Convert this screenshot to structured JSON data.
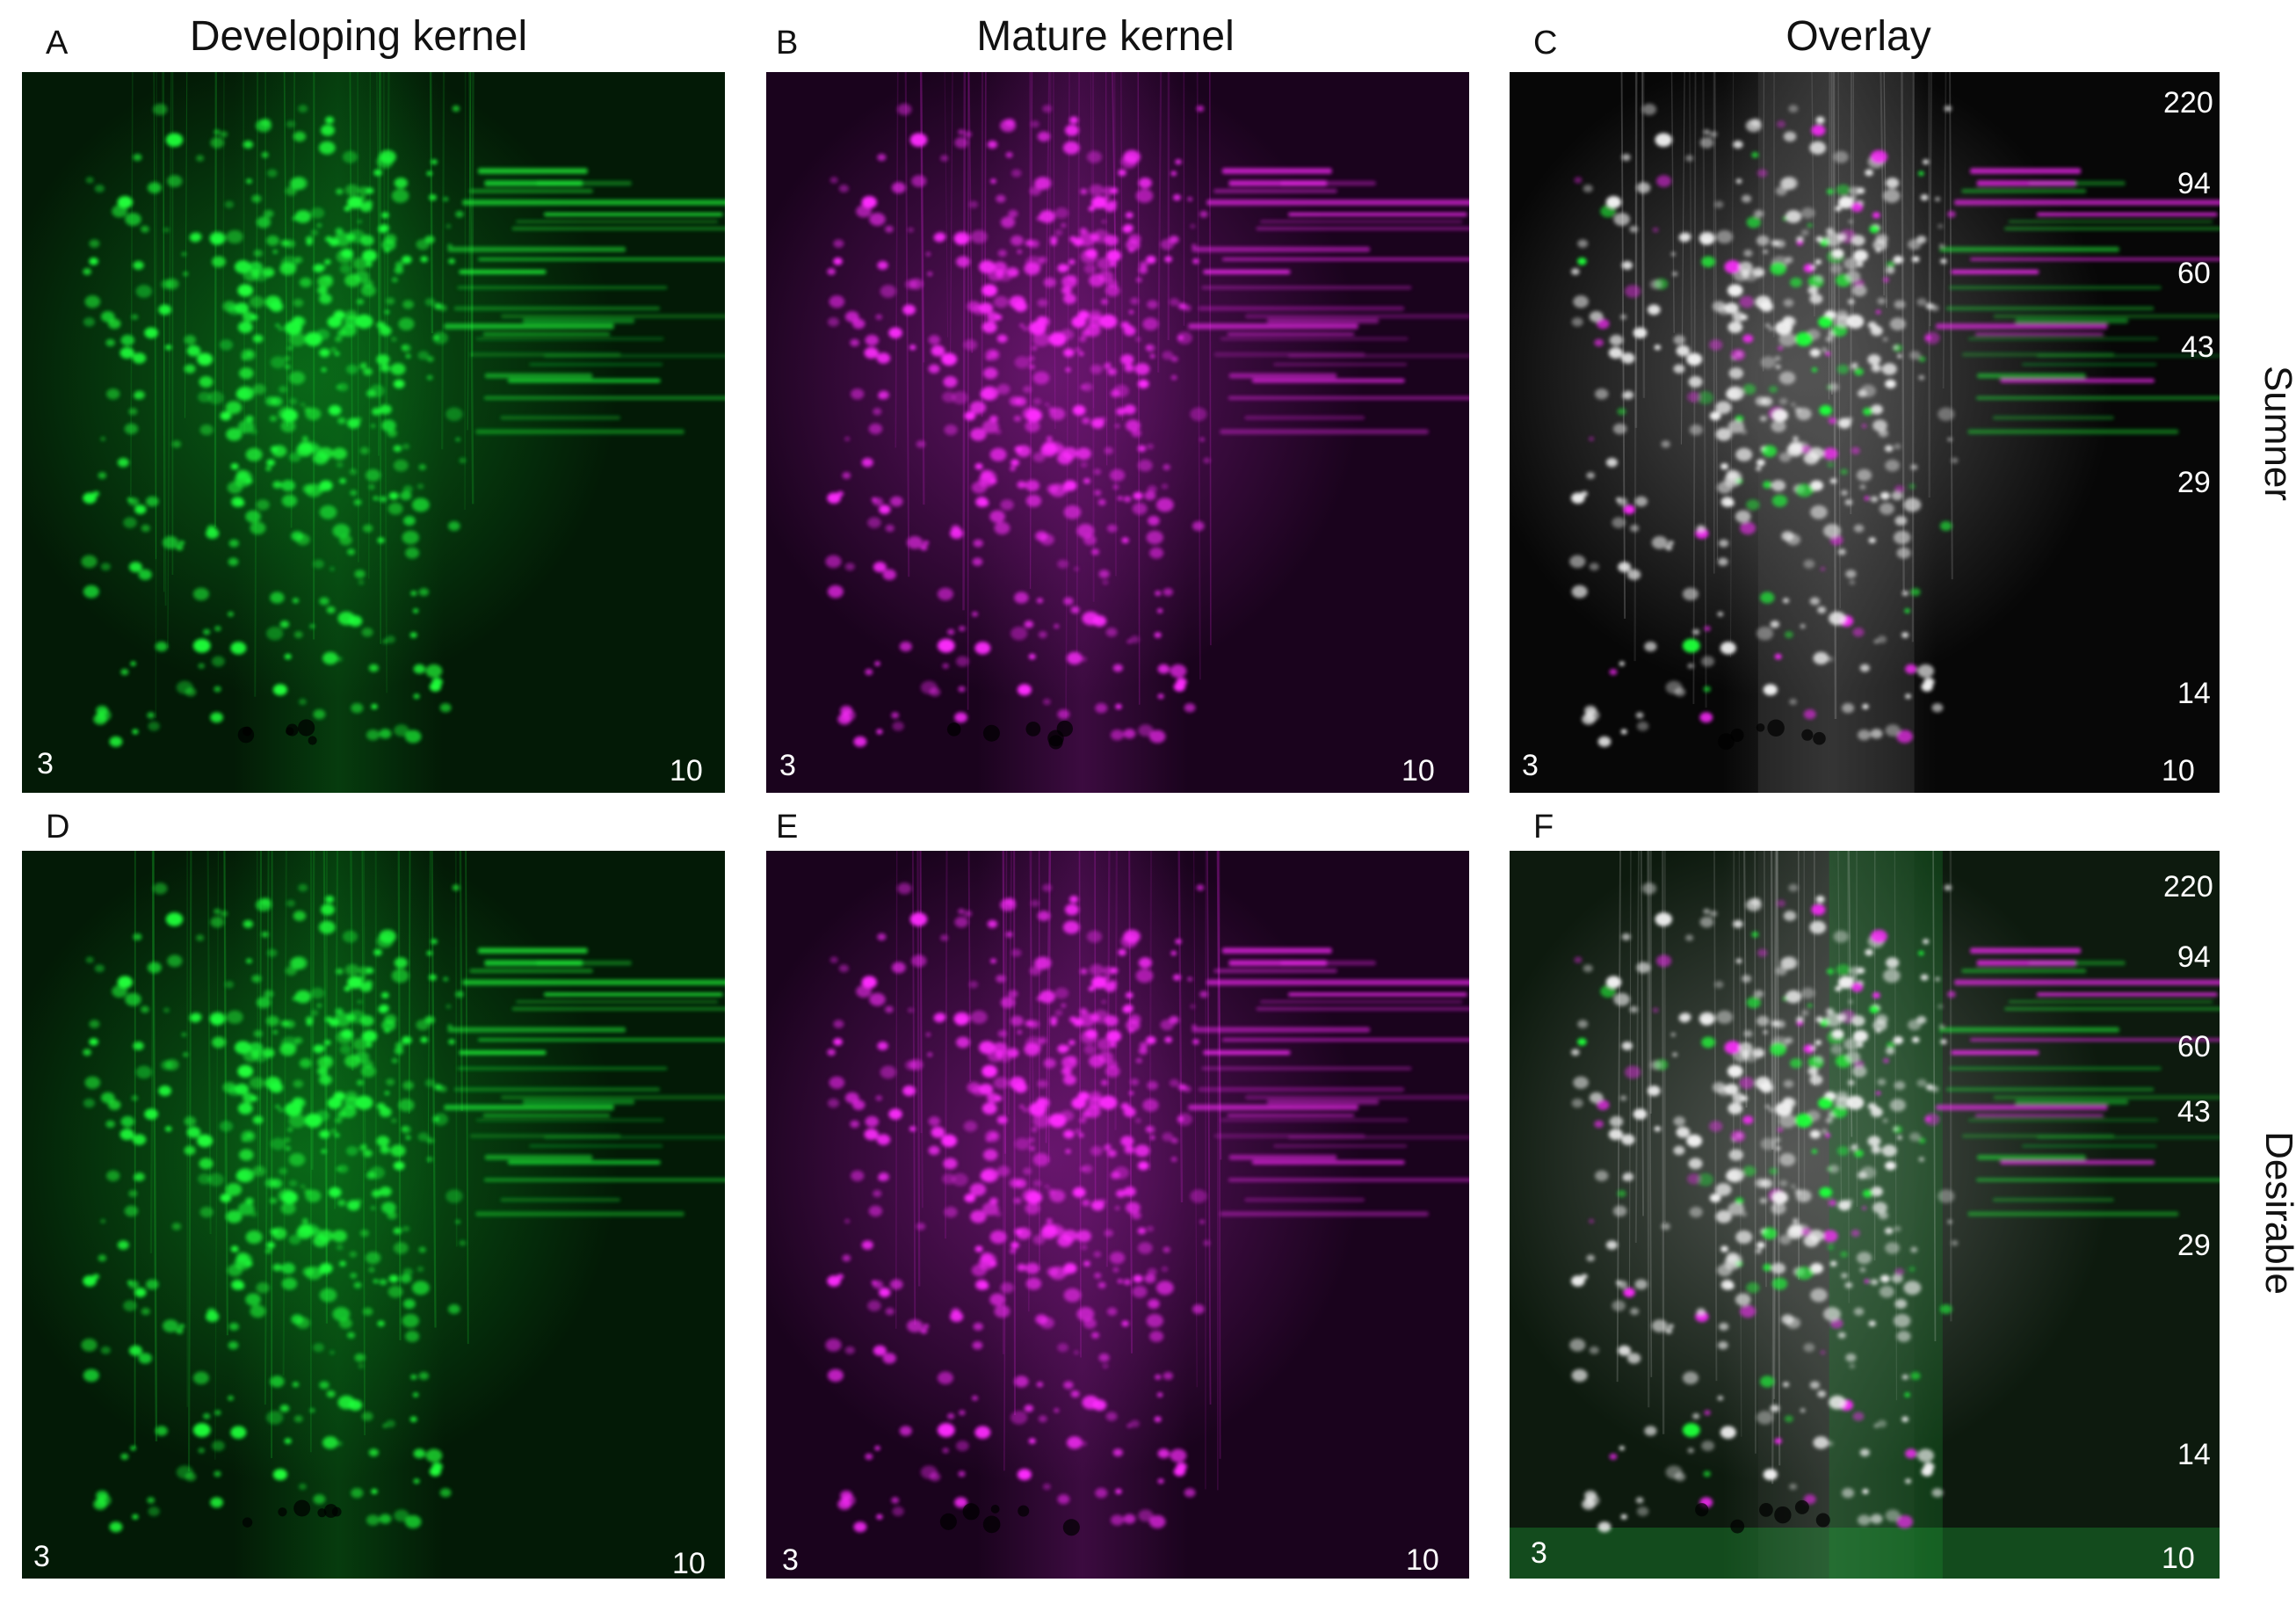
{
  "figure": {
    "column_titles": {
      "developing": "Developing kernel",
      "mature": "Mature kernel",
      "overlay": "Overlay"
    },
    "row_labels": {
      "top": "Sumner",
      "bottom": "Desirable"
    },
    "panels": [
      {
        "letter": "A",
        "type": "green",
        "ph_left": "3",
        "ph_right": "10"
      },
      {
        "letter": "B",
        "type": "magenta",
        "ph_left": "3",
        "ph_right": "10"
      },
      {
        "letter": "C",
        "type": "overlay",
        "ph_left": "3",
        "ph_right": "10"
      },
      {
        "letter": "D",
        "type": "green",
        "ph_left": "3",
        "ph_right": "10"
      },
      {
        "letter": "E",
        "type": "magenta",
        "ph_left": "3",
        "ph_right": "10"
      },
      {
        "letter": "F",
        "type": "overlay",
        "ph_left": "3",
        "ph_right": "10"
      }
    ],
    "mw_markers": [
      "220",
      "94",
      "60",
      "43",
      "29",
      "14"
    ],
    "colors": {
      "green_channel": "#1fff3a",
      "magenta_channel": "#ff2bff",
      "overlay_spot": "#f2f2f2"
    }
  }
}
